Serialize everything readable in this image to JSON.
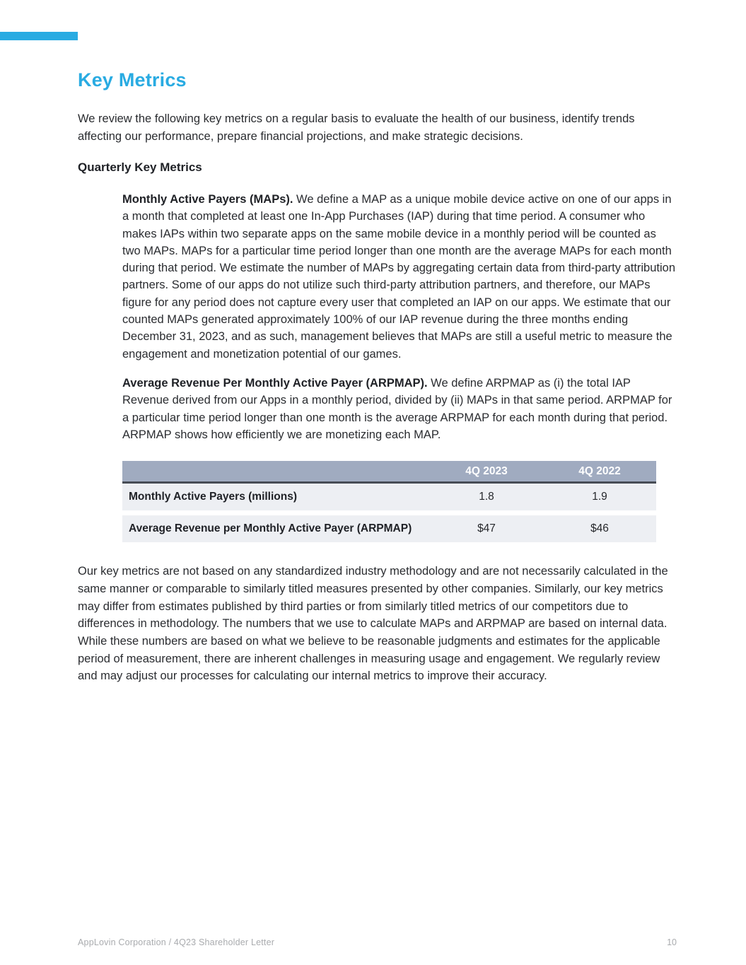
{
  "colors": {
    "accent": "#29abe2",
    "table_header_bg": "#a0abc0",
    "table_header_border": "#474c55",
    "table_row_bg": "#edeff3",
    "footer_text": "#a9abae"
  },
  "header": {
    "title": "Key Metrics"
  },
  "intro": "We review the following key metrics on a regular basis to evaluate the health of our business, identify trends affecting our performance, prepare financial projections, and make strategic decisions.",
  "section": {
    "subtitle": "Quarterly Key Metrics"
  },
  "definitions": [
    {
      "lead": "Monthly Active Payers (MAPs).",
      "body": " We define a MAP as a unique mobile device active on one of our apps in a month that completed at least one In-App Purchases (IAP) during that time period. A consumer who makes IAPs within two separate apps on the same mobile device in a monthly period will be counted as two MAPs. MAPs for a particular time period longer than one month are the average MAPs for each month during that period. We estimate the number of MAPs by aggregating certain data from third-party attribution partners. Some of our apps do not utilize such third-party attribution partners, and therefore, our MAPs figure for any period does not capture every user that completed an IAP on our apps. We estimate that our counted MAPs generated approximately 100% of our IAP revenue during the three months ending December 31, 2023, and as such, management believes that MAPs are still a useful metric to measure the engagement and monetization potential of our games."
    },
    {
      "lead": "Average Revenue Per Monthly Active Payer (ARPMAP).",
      "body": " We define ARPMAP as (i) the total IAP Revenue derived from our Apps in a monthly period, divided by (ii) MAPs in that same period. ARPMAP for a particular time period longer than one month is the average ARPMAP for each month during that period. ARPMAP shows how efficiently we are monetizing each MAP."
    }
  ],
  "table": {
    "columns": [
      "4Q 2023",
      "4Q 2022"
    ],
    "rows": [
      {
        "label": "Monthly Active Payers (millions)",
        "values": [
          "1.8",
          "1.9"
        ]
      },
      {
        "label": "Average Revenue per Monthly Active Payer (ARPMAP)",
        "values": [
          "$47",
          "$46"
        ]
      }
    ]
  },
  "closing": "Our key metrics are not based on any standardized industry methodology and are not necessarily calculated in the same manner or comparable to similarly titled measures presented by other companies. Similarly, our key metrics may differ from estimates published by third parties or from similarly titled metrics of our competitors due to differences in methodology. The numbers that we use to calculate MAPs and ARPMAP are based on internal data. While these numbers are based on what we believe to be reasonable judgments and estimates for the applicable period of measurement, there are inherent challenges in measuring usage and engagement. We regularly review and may adjust our processes for calculating our internal metrics to improve their accuracy.",
  "footer": {
    "left": "AppLovin Corporation  /  4Q23 Shareholder Letter",
    "page_number": "10"
  }
}
